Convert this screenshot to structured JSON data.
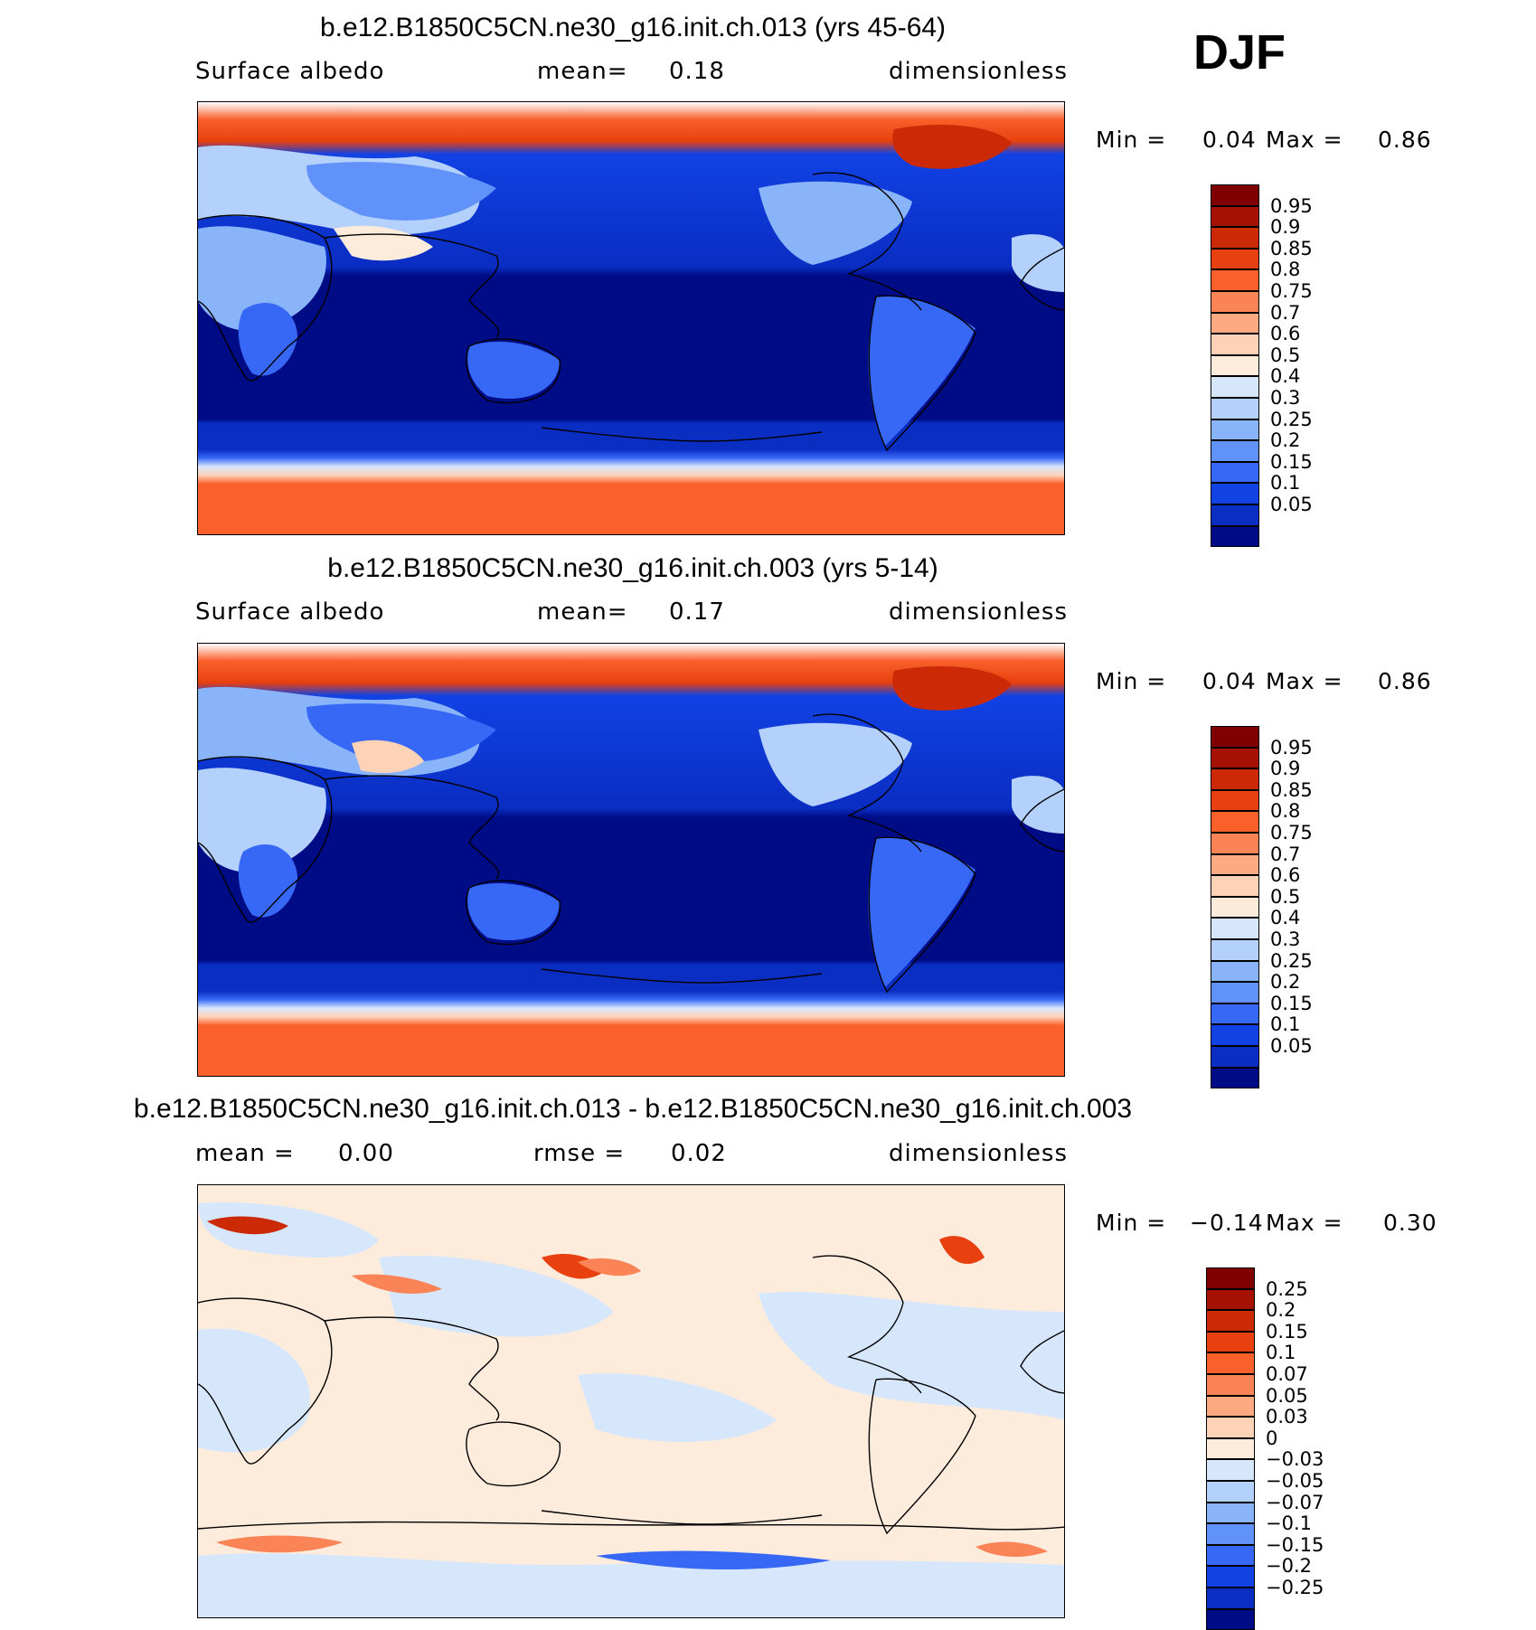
{
  "season": "DJF",
  "panels": [
    {
      "title": "b.e12.B1850C5CN.ne30_g16.init.ch.013 (yrs 45-64)",
      "left_label": "Surface albedo",
      "center_label": "mean=",
      "center_value": "0.18",
      "right_label": "dimensionless",
      "min_label": "Min =",
      "min_value": "0.04",
      "max_label": "Max =",
      "max_value": "0.86",
      "colorbar": {
        "labels": [
          "0.95",
          "0.9",
          "0.85",
          "0.8",
          "0.75",
          "0.7",
          "0.6",
          "0.5",
          "0.4",
          "0.3",
          "0.25",
          "0.2",
          "0.15",
          "0.1",
          "0.05"
        ],
        "colors": [
          "#7f0000",
          "#a51203",
          "#cc2a06",
          "#e8400f",
          "#f9602a",
          "#fa8456",
          "#fdaa83",
          "#fdd2b7",
          "#fdebdc",
          "#d7e7fb",
          "#b3d1fc",
          "#8ab4fa",
          "#6092fa",
          "#3768f5",
          "#1142e4",
          "#0a2dc2",
          "#000c86"
        ]
      }
    },
    {
      "title": "b.e12.B1850C5CN.ne30_g16.init.ch.003 (yrs 5-14)",
      "left_label": "Surface albedo",
      "center_label": "mean=",
      "center_value": "0.17",
      "right_label": "dimensionless",
      "min_label": "Min =",
      "min_value": "0.04",
      "max_label": "Max =",
      "max_value": "0.86",
      "colorbar": {
        "labels": [
          "0.95",
          "0.9",
          "0.85",
          "0.8",
          "0.75",
          "0.7",
          "0.6",
          "0.5",
          "0.4",
          "0.3",
          "0.25",
          "0.2",
          "0.15",
          "0.1",
          "0.05"
        ],
        "colors": [
          "#7f0000",
          "#a51203",
          "#cc2a06",
          "#e8400f",
          "#f9602a",
          "#fa8456",
          "#fdaa83",
          "#fdd2b7",
          "#fdebdc",
          "#d7e7fb",
          "#b3d1fc",
          "#8ab4fa",
          "#6092fa",
          "#3768f5",
          "#1142e4",
          "#0a2dc2",
          "#000c86"
        ]
      }
    },
    {
      "title": "b.e12.B1850C5CN.ne30_g16.init.ch.013 - b.e12.B1850C5CN.ne30_g16.init.ch.003",
      "left_label": "mean =",
      "left_value": "0.00",
      "center_label": "rmse =",
      "center_value": "0.02",
      "right_label": "dimensionless",
      "min_label": "Min =",
      "min_value": "−0.14",
      "max_label": "Max =",
      "max_value": "0.30",
      "colorbar": {
        "labels": [
          "0.25",
          "0.2",
          "0.15",
          "0.1",
          "0.07",
          "0.05",
          "0.03",
          "0",
          "−0.03",
          "−0.05",
          "−0.07",
          "−0.1",
          "−0.15",
          "−0.2",
          "−0.25"
        ],
        "colors": [
          "#7f0000",
          "#a51203",
          "#cc2a06",
          "#e8400f",
          "#f9602a",
          "#fa8456",
          "#fdaa83",
          "#fdd2b7",
          "#fdebdc",
          "#d7e7fb",
          "#b3d1fc",
          "#8ab4fa",
          "#6092fa",
          "#3768f5",
          "#1142e4",
          "#0a2dc2",
          "#000c86"
        ]
      }
    }
  ]
}
